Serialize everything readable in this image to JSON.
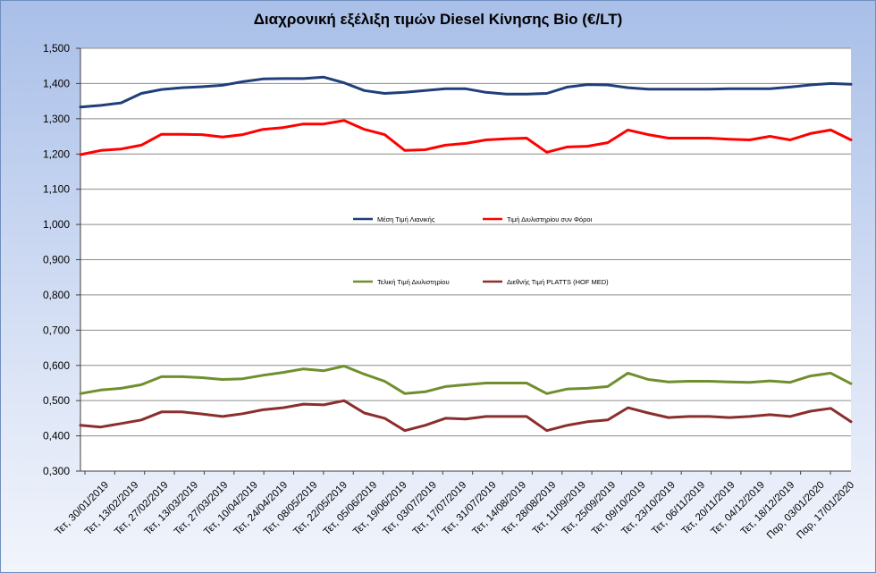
{
  "chart_data": {
    "type": "line",
    "title": "Διαχρονική εξέλιξη τιμών Diesel Κίνησης Bio (€/LT)",
    "xlabel": "",
    "ylabel": "",
    "ylim": [
      0.3,
      1.5
    ],
    "y_ticks": [
      "0,300",
      "0,400",
      "0,500",
      "0,600",
      "0,700",
      "0,800",
      "0,900",
      "1,000",
      "1,100",
      "1,200",
      "1,300",
      "1,400",
      "1,500"
    ],
    "grid": "horizontal",
    "legend_placement": "inside-center",
    "x_tick_labels": [
      "Τετ, 30/01/2019",
      "Τετ, 13/02/2019",
      "Τετ, 27/02/2019",
      "Τετ, 13/03/2019",
      "Τετ, 27/03/2019",
      "Τετ, 10/04/2019",
      "Τετ, 24/04/2019",
      "Τετ, 08/05/2019",
      "Τετ, 22/05/2019",
      "Τετ, 05/06/2019",
      "Τετ, 19/06/2019",
      "Τετ, 03/07/2019",
      "Τετ, 17/07/2019",
      "Τετ, 31/07/2019",
      "Τετ, 14/08/2019",
      "Τετ, 28/08/2019",
      "Τετ, 11/09/2019",
      "Τετ, 25/09/2019",
      "Τετ, 09/10/2019",
      "Τετ, 23/10/2019",
      "Τετ, 06/11/2019",
      "Τετ, 20/11/2019",
      "Τετ, 04/12/2019",
      "Τετ, 18/12/2019",
      "Παρ, 03/01/2020",
      "Παρ, 17/01/2020"
    ],
    "series": [
      {
        "name": "Μέση Τιμή Λιανικής",
        "color": "#1f3f7a",
        "values": [
          1.333,
          1.338,
          1.345,
          1.372,
          1.383,
          1.388,
          1.391,
          1.395,
          1.405,
          1.413,
          1.414,
          1.414,
          1.418,
          1.402,
          1.38,
          1.372,
          1.375,
          1.38,
          1.385,
          1.385,
          1.375,
          1.37,
          1.37,
          1.372,
          1.39,
          1.397,
          1.396,
          1.388,
          1.384,
          1.384,
          1.384,
          1.384,
          1.385,
          1.385,
          1.385,
          1.39,
          1.396,
          1.4,
          1.398
        ]
      },
      {
        "name": "Τιμή Διυλιστηρίου συν Φόροι",
        "color": "#ff0000",
        "values": [
          1.198,
          1.21,
          1.214,
          1.225,
          1.256,
          1.256,
          1.255,
          1.248,
          1.255,
          1.27,
          1.275,
          1.285,
          1.285,
          1.295,
          1.27,
          1.255,
          1.21,
          1.212,
          1.225,
          1.23,
          1.24,
          1.243,
          1.245,
          1.205,
          1.22,
          1.222,
          1.232,
          1.268,
          1.255,
          1.245,
          1.245,
          1.245,
          1.242,
          1.24,
          1.25,
          1.24,
          1.258,
          1.268,
          1.24
        ]
      },
      {
        "name": "Τελική Τιμή Διυλιστηρίου",
        "color": "#6f8f2f",
        "values": [
          0.52,
          0.53,
          0.535,
          0.545,
          0.568,
          0.568,
          0.565,
          0.56,
          0.562,
          0.572,
          0.58,
          0.59,
          0.585,
          0.598,
          0.575,
          0.555,
          0.52,
          0.525,
          0.54,
          0.545,
          0.55,
          0.55,
          0.55,
          0.52,
          0.533,
          0.535,
          0.54,
          0.578,
          0.56,
          0.553,
          0.555,
          0.555,
          0.553,
          0.552,
          0.556,
          0.552,
          0.57,
          0.578,
          0.548
        ]
      },
      {
        "name": "Διεθνής Τιμή PLATTS (HOF MED)",
        "color": "#8b2e2e",
        "values": [
          0.43,
          0.425,
          0.435,
          0.445,
          0.468,
          0.468,
          0.462,
          0.455,
          0.463,
          0.474,
          0.48,
          0.49,
          0.488,
          0.5,
          0.465,
          0.45,
          0.415,
          0.43,
          0.45,
          0.448,
          0.455,
          0.455,
          0.455,
          0.415,
          0.43,
          0.44,
          0.445,
          0.48,
          0.465,
          0.452,
          0.455,
          0.455,
          0.452,
          0.455,
          0.46,
          0.455,
          0.47,
          0.478,
          0.44
        ]
      }
    ]
  }
}
